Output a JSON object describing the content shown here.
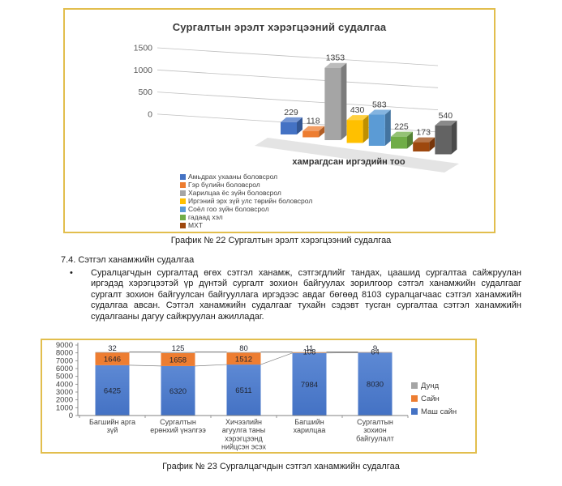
{
  "page": {
    "caption1": "График № 22 Сургалтын эрэлт хэрэгцээний судалгаа",
    "section_heading": "7.4. Сэтгэл ханамжийн судалгаа",
    "bullet_glyph": "•",
    "paragraph": "Суралцагчдын сургалтад өгөх сэтгэл ханамж, сэтгэгдлийг тандах, цаашид сургалтаа сайжруулан иргэдэд хэрэгцээтэй үр дүнтэй сургалт зохион байгуулах зорилгоор сэтгэл ханамжийн судалгааг сургалт зохион байгуулсан байгууллага иргэдээс авдаг бөгөөд 8103 суралцагчаас сэтгэл ханамжийн судалгаа авсан. Сэтгэл ханамжийн судалгааг тухайн сэдэвт тусган сургалтаа сэтгэл ханамжийн судалгааны дагуу сайжруулан ажилладаг.",
    "caption2": "График № 23 Сургалцагчдын сэтгэл ханамжийн судалгаа"
  },
  "colors": {
    "box_border": "#E2BE4D",
    "axis_text": "#595959",
    "label_text": "#404040"
  },
  "chart_data": [
    {
      "type": "bar",
      "style": "3d-column",
      "title": "Сургалтын эрэлт хэрэгцээний судалгаа",
      "xlabel": "хамрагдсан иргэдийн тоо",
      "ylim": [
        0,
        1500
      ],
      "yticks": [
        1500,
        1000,
        500,
        0
      ],
      "grid": true,
      "legend_position": "bottom-left",
      "series": [
        {
          "name": "Амьдрах ухааны боловсрол",
          "value": 229,
          "color": "#4472C4"
        },
        {
          "name": "Гэр бүлийн боловсрол",
          "value": 118,
          "color": "#ED7D31"
        },
        {
          "name": "Харилцаа ёс зүйн боловсрол",
          "value": 1353,
          "color": "#A5A5A5"
        },
        {
          "name": "Иргэний эрх зүй улс төрийн боловсрол",
          "value": 430,
          "color": "#FFC000"
        },
        {
          "name": "Соёл гоо зүйн боловсрол",
          "value": 583,
          "color": "#5B9BD5"
        },
        {
          "name": "гадаад хэл",
          "value": 225,
          "color": "#70AD47"
        },
        {
          "name": "МХТ",
          "value": 173,
          "color": "#9E480E"
        },
        {
          "name": "",
          "value": 540,
          "color": "#636363"
        }
      ]
    },
    {
      "type": "bar",
      "variant": "stacked",
      "title": "",
      "ylim": [
        0,
        9000
      ],
      "ytick_step": 1000,
      "grid": false,
      "legend_position": "right",
      "categories": [
        "Багшийн арга зүй",
        "Сургалтын ерөнхий үнэлгээ",
        "Хичээлийн агуулга таны хэрэгцээнд нийцсэн эсэх",
        "Багшийн харилцаа",
        "Сургалтын зохион байгуулалт"
      ],
      "category_label_lines": [
        [
          "Багшийн арга",
          "зүй"
        ],
        [
          "Сургалтын",
          "ерөнхий үнэлгээ"
        ],
        [
          "Хичээлийн",
          "агуулга таны",
          "хэрэгцээнд",
          "нийцсэн эсэх"
        ],
        [
          "Багшийн",
          "харилцаа"
        ],
        [
          "Сургалтын",
          "зохион",
          "байгуулалт"
        ]
      ],
      "series": [
        {
          "name": "Маш сайн",
          "color": "#4472C4",
          "values": [
            6425,
            6320,
            6511,
            7984,
            8030
          ]
        },
        {
          "name": "Сайн",
          "color": "#ED7D31",
          "values": [
            1646,
            1658,
            1512,
            108,
            64
          ]
        },
        {
          "name": "Дунд",
          "color": "#A5A5A5",
          "values": [
            32,
            125,
            80,
            11,
            9
          ]
        }
      ],
      "legend_order": [
        "Дунд",
        "Сайн",
        "Маш сайн"
      ]
    }
  ]
}
